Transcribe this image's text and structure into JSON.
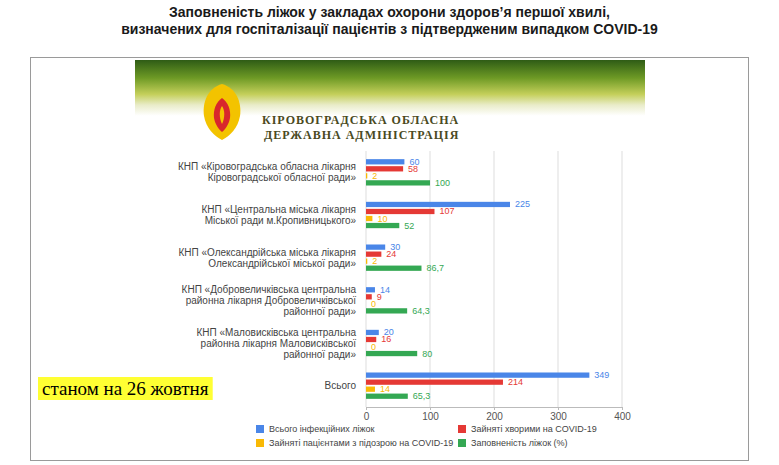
{
  "header": {
    "banner": [
      "КІРОВОГРАДСЬКА ОБЛАСНА",
      "ДЕРЖАВНА АДМІНІСТРАЦІЯ"
    ]
  },
  "chart_data": {
    "type": "bar",
    "orientation": "horizontal",
    "title": "Заповненість ліжок у закладах охорони здоров’я першої хвилі,",
    "subtitle": "визначених для госпіталізації пацієнтів з підтвердженим випадком COVID-19",
    "annotations": [
      "станом на 26 жовтня"
    ],
    "categories": [
      "КНП «Кіровоградська обласна лікарня Кіровоградської обласної ради»",
      "КНП «Центральна міська лікарня Міської ради м.Кропивницького»",
      "КНП «Олександрійська міська лікарня Олександрійської міської ради»",
      "КНП «Добровеличківська центральна районна лікарня Добровеличківської районної ради»",
      "КНП «Маловисківська центральна районна лікарня Маловисківської районної ради»",
      "Всього"
    ],
    "series": [
      {
        "name": "Всього інфекційних ліжок",
        "color": "#4a86e8",
        "values": [
          60,
          225,
          30,
          14,
          20,
          349
        ]
      },
      {
        "name": "Зайняті хворими на COVID-19",
        "color": "#e53935",
        "values": [
          58,
          107,
          24,
          9,
          16,
          214
        ]
      },
      {
        "name": "Зайняті пацієнтами з підозрою на COVID-19",
        "color": "#f9b904",
        "values": [
          2,
          10,
          2,
          0,
          0,
          14
        ]
      },
      {
        "name": "Заповненість ліжок (%)",
        "color": "#34a853",
        "values": [
          100,
          52,
          86.7,
          64.3,
          80,
          65.3
        ],
        "value_labels": [
          "100",
          "52",
          "86,7",
          "64,3",
          "80",
          "65,3"
        ]
      }
    ],
    "xlim": [
      0,
      400
    ],
    "xticks": [
      0,
      100,
      200,
      300,
      400
    ],
    "grid": true,
    "legend": "bottom",
    "data_labels": true
  }
}
